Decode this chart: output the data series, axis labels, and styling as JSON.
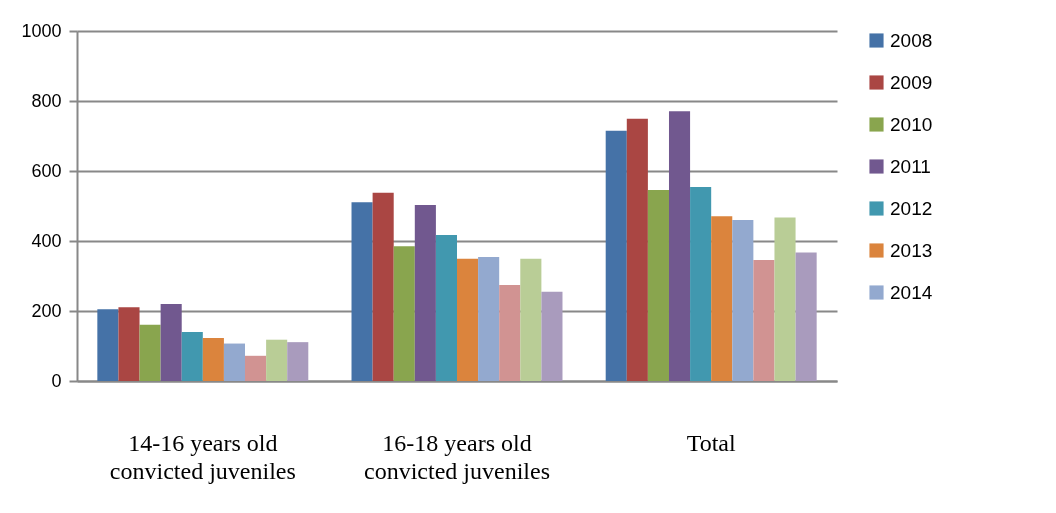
{
  "chart_data": {
    "type": "bar",
    "categories": [
      "14-16 years old\nconvicted juveniles",
      "16-18 years old\nconvicted juveniles",
      "Total"
    ],
    "series": [
      {
        "name": "2008",
        "color": "#4572a7",
        "values": [
          205,
          511,
          715
        ]
      },
      {
        "name": "2009",
        "color": "#aa4643",
        "values": [
          211,
          538,
          749
        ]
      },
      {
        "name": "2010",
        "color": "#89a54e",
        "values": [
          161,
          385,
          546
        ]
      },
      {
        "name": "2011",
        "color": "#71588f",
        "values": [
          220,
          503,
          771
        ]
      },
      {
        "name": "2012",
        "color": "#4198af",
        "values": [
          140,
          417,
          554
        ]
      },
      {
        "name": "2013",
        "color": "#db843d",
        "values": [
          123,
          349,
          471
        ]
      },
      {
        "name": "2014",
        "color": "#93a9cf",
        "values": [
          107,
          354,
          460
        ]
      },
      {
        "color": "#d19392",
        "values": [
          72,
          274,
          346
        ]
      },
      {
        "color": "#b9cd96",
        "values": [
          118,
          349,
          467
        ]
      },
      {
        "color": "#a99bbd",
        "values": [
          111,
          255,
          367
        ]
      }
    ],
    "ylim": [
      0,
      1000
    ],
    "yticks": [
      0,
      200,
      400,
      600,
      800,
      1000
    ],
    "grid": "y",
    "legend": "right"
  }
}
